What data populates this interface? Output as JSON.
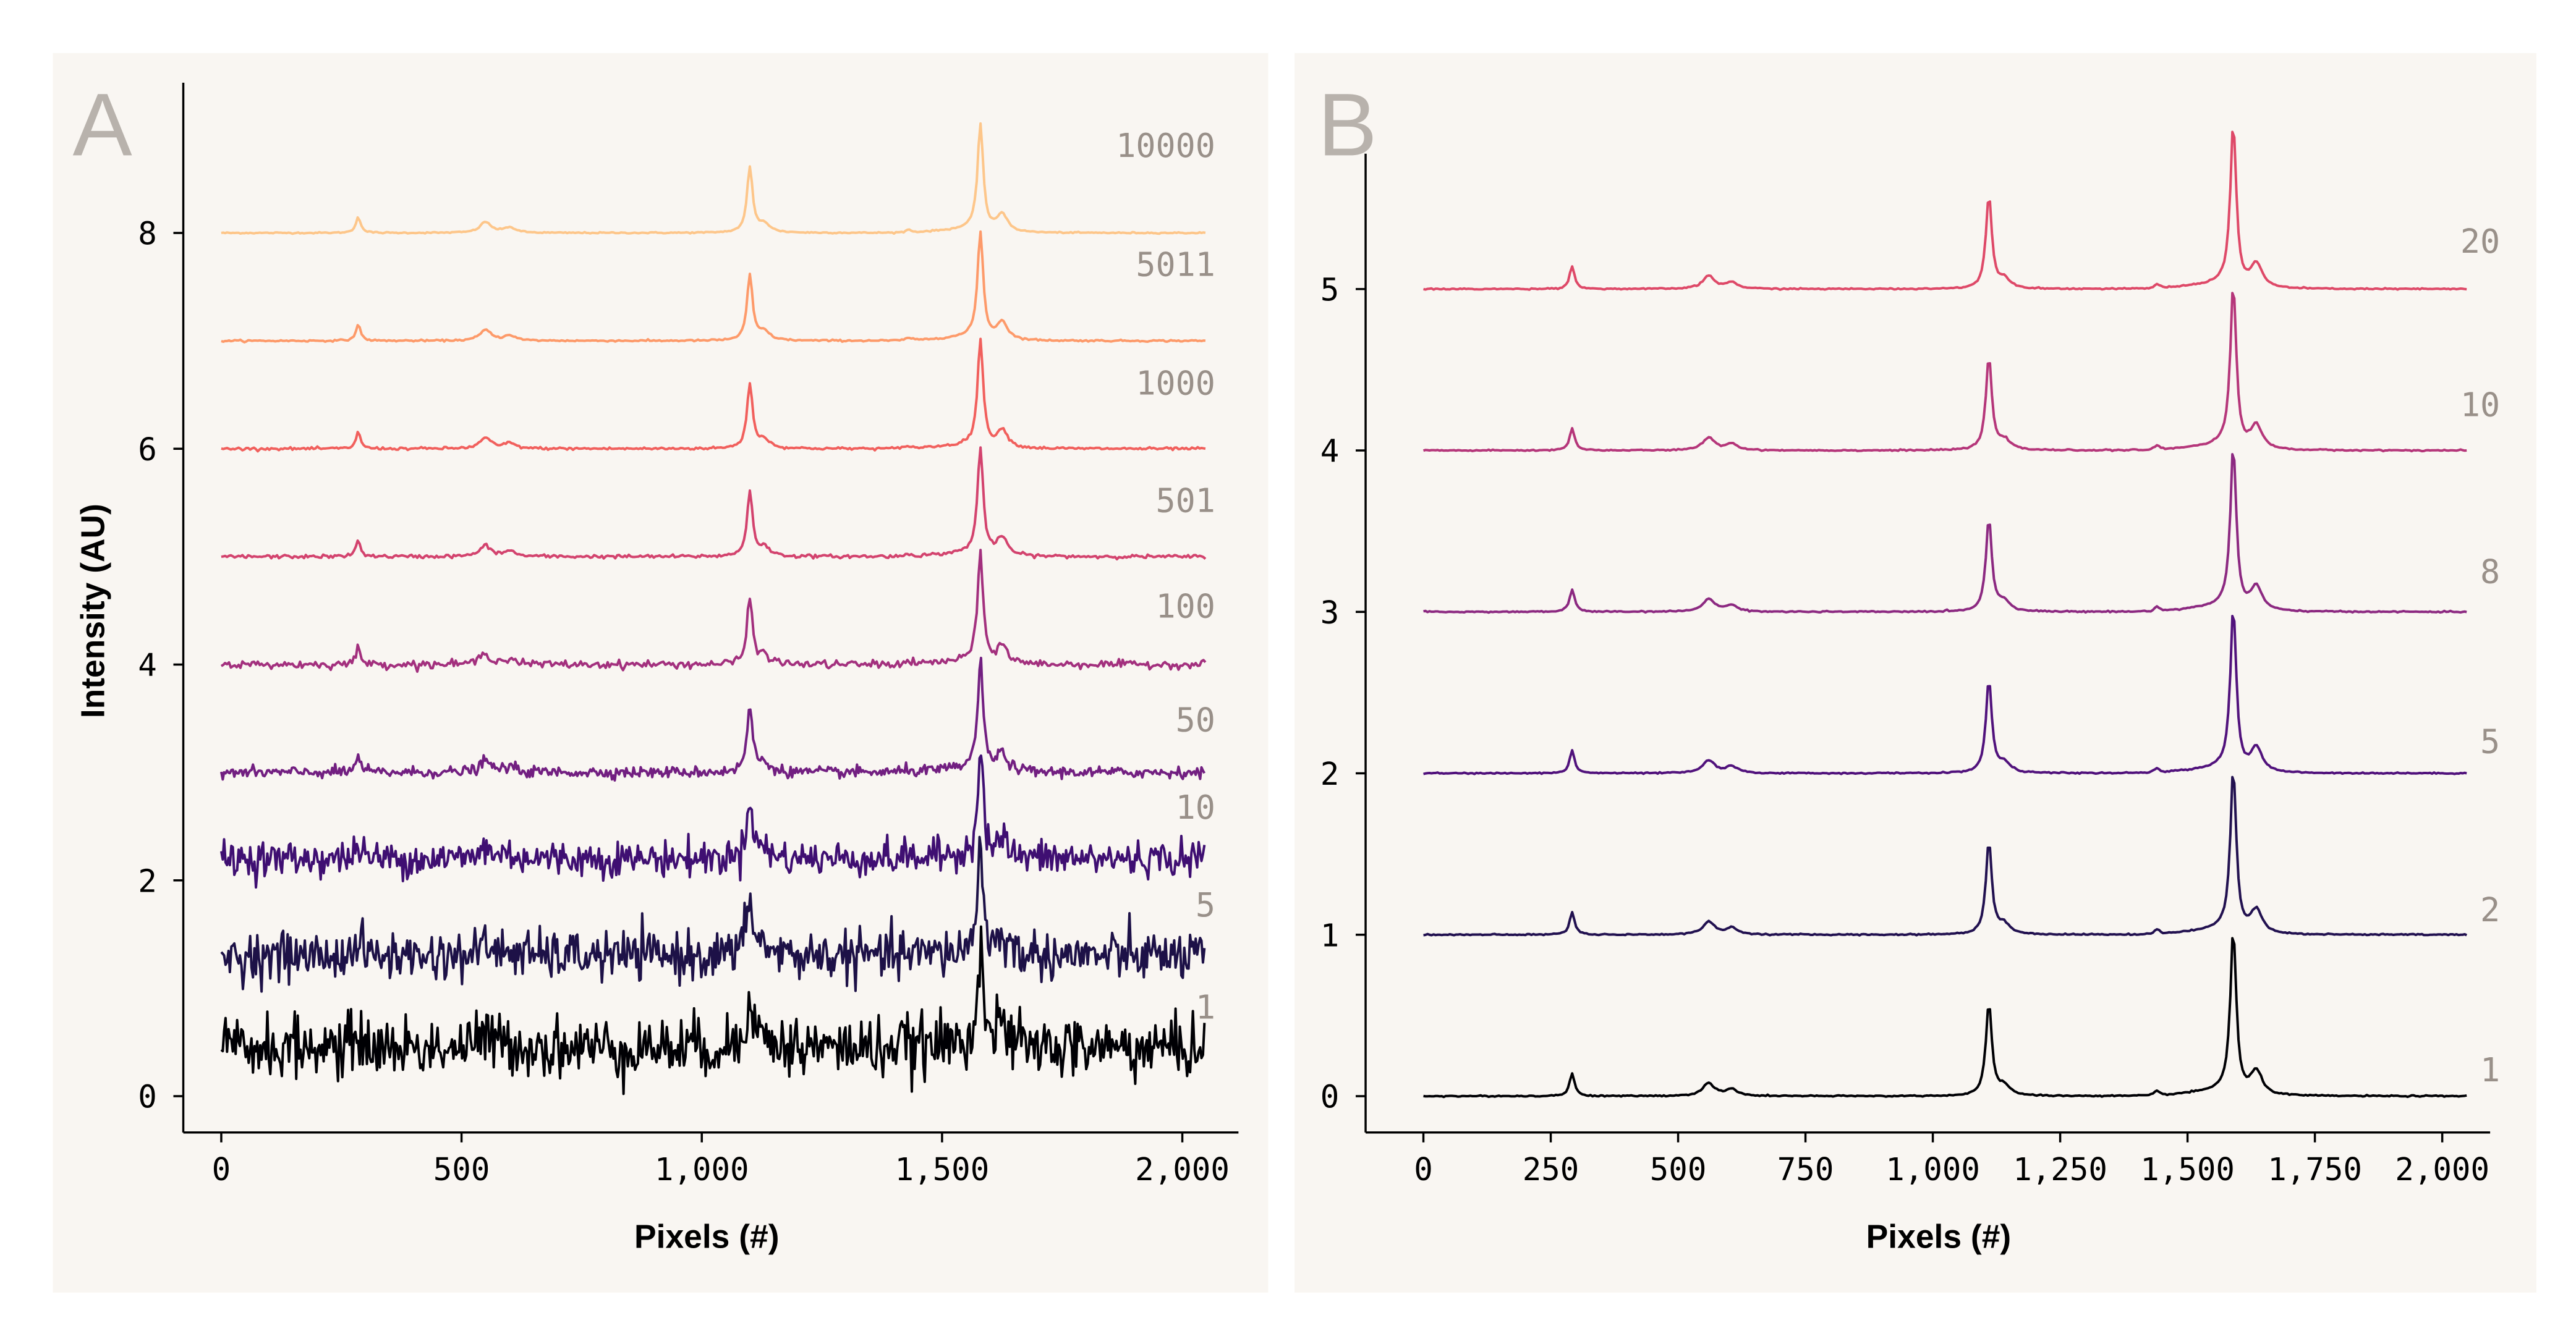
{
  "chart_data": [
    {
      "panel_label": "A",
      "type": "line",
      "xlabel": "Pixels (#)",
      "ylabel": "Intensity (AU)",
      "xlim": [
        -80,
        2120
      ],
      "ylim": [
        -0.35,
        9.4
      ],
      "xticks": [
        0,
        500,
        1000,
        1500,
        2000
      ],
      "xtick_labels": [
        "0",
        "500",
        "1,000",
        "1,500",
        "2,000"
      ],
      "yticks": [
        0,
        2,
        4,
        6,
        8
      ],
      "ytick_labels": [
        "0",
        "2",
        "4",
        "6",
        "8"
      ],
      "grid": false,
      "x_range": [
        0,
        2048
      ],
      "peaks": [
        {
          "x": 285,
          "height": 0.15
        },
        {
          "x": 550,
          "height": 0.1
        },
        {
          "x": 600,
          "height": 0.05
        },
        {
          "x": 1100,
          "height": 0.6
        },
        {
          "x": 1130,
          "height": 0.08
        },
        {
          "x": 1430,
          "height": 0.03
        },
        {
          "x": 1580,
          "height": 1.0
        },
        {
          "x": 1625,
          "height": 0.17
        }
      ],
      "series": [
        {
          "name": "10000",
          "offset": 8.0,
          "noise": 0.003,
          "color": "#fdc68a"
        },
        {
          "name": "5011",
          "offset": 7.0,
          "noise": 0.004,
          "color": "#fd9a6a"
        },
        {
          "name": "1000",
          "offset": 6.0,
          "noise": 0.006,
          "color": "#f1605d"
        },
        {
          "name": "501",
          "offset": 5.0,
          "noise": 0.008,
          "color": "#d3436e"
        },
        {
          "name": "100",
          "offset": 4.0,
          "noise": 0.018,
          "color": "#a3307e"
        },
        {
          "name": "50",
          "offset": 3.0,
          "noise": 0.025,
          "color": "#721f81"
        },
        {
          "name": "10",
          "offset": 2.2,
          "noise": 0.08,
          "color": "#3f0f72"
        },
        {
          "name": "5",
          "offset": 1.3,
          "noise": 0.11,
          "color": "#1d1147"
        },
        {
          "name": "1",
          "offset": 0.45,
          "noise": 0.14,
          "color": "#000004"
        }
      ]
    },
    {
      "panel_label": "B",
      "type": "line",
      "xlabel": "Pixels (#)",
      "ylabel": "",
      "xlim": [
        -80,
        2120
      ],
      "ylim": [
        -0.22,
        5.9
      ],
      "xticks": [
        0,
        250,
        500,
        750,
        1000,
        1250,
        1500,
        1750,
        2000
      ],
      "xtick_labels": [
        "0",
        "250",
        "500",
        "750",
        "1,000",
        "1,250",
        "1,500",
        "1,750",
        "2,000"
      ],
      "yticks": [
        0,
        1,
        2,
        3,
        4,
        5
      ],
      "ytick_labels": [
        "0",
        "1",
        "2",
        "3",
        "4",
        "5"
      ],
      "grid": false,
      "x_range": [
        0,
        2048
      ],
      "peaks": [
        {
          "x": 292,
          "height": 0.14
        },
        {
          "x": 560,
          "height": 0.08
        },
        {
          "x": 605,
          "height": 0.04
        },
        {
          "x": 1110,
          "height": 0.57
        },
        {
          "x": 1140,
          "height": 0.06
        },
        {
          "x": 1440,
          "height": 0.03
        },
        {
          "x": 1590,
          "height": 1.0
        },
        {
          "x": 1635,
          "height": 0.15
        }
      ],
      "series": [
        {
          "name": "20",
          "offset": 5.0,
          "noise": 0.002,
          "color": "#de4968"
        },
        {
          "name": "10",
          "offset": 4.0,
          "noise": 0.002,
          "color": "#b5367a"
        },
        {
          "name": "8",
          "offset": 3.0,
          "noise": 0.002,
          "color": "#8c2981"
        },
        {
          "name": "5",
          "offset": 2.0,
          "noise": 0.002,
          "color": "#51127c"
        },
        {
          "name": "2",
          "offset": 1.0,
          "noise": 0.002,
          "color": "#221150"
        },
        {
          "name": "1",
          "offset": 0.0,
          "noise": 0.002,
          "color": "#000004"
        }
      ]
    }
  ]
}
